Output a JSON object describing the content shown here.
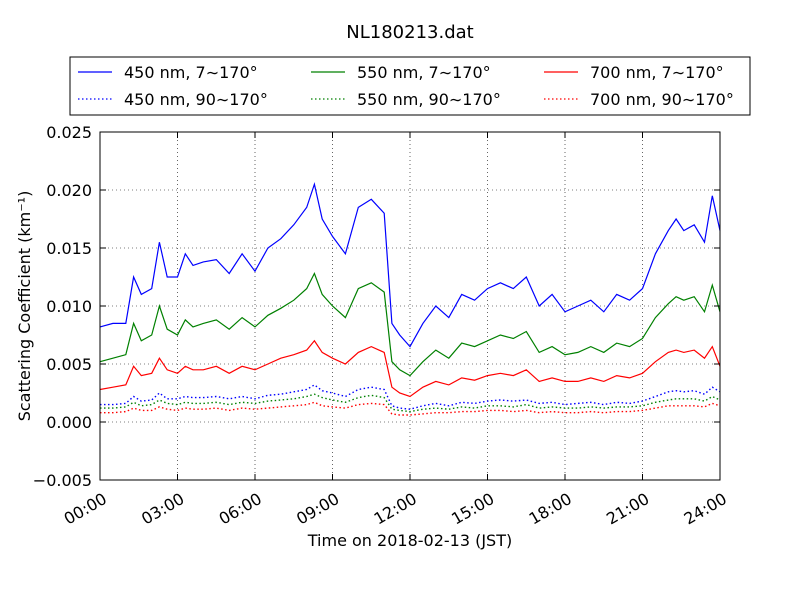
{
  "chart_data": {
    "type": "line",
    "title": "NL180213.dat",
    "xlabel": "Time on 2018-02-13 (JST)",
    "ylabel": "Scattering Coefficient (km⁻¹)",
    "xlim": [
      0,
      24
    ],
    "ylim": [
      -0.005,
      0.025
    ],
    "x_ticks": [
      "00:00",
      "03:00",
      "06:00",
      "09:00",
      "12:00",
      "15:00",
      "18:00",
      "21:00",
      "24:00"
    ],
    "y_ticks": [
      "−0.005",
      "0.000",
      "0.005",
      "0.010",
      "0.015",
      "0.020",
      "0.025"
    ],
    "grid": true,
    "legend_position": "top",
    "x": [
      0,
      0.5,
      1,
      1.3,
      1.6,
      2,
      2.3,
      2.6,
      3,
      3.3,
      3.6,
      4,
      4.5,
      5,
      5.5,
      6,
      6.5,
      7,
      7.5,
      8,
      8.3,
      8.6,
      9,
      9.5,
      10,
      10.5,
      11,
      11.3,
      11.6,
      12,
      12.5,
      13,
      13.5,
      14,
      14.5,
      15,
      15.5,
      16,
      16.5,
      17,
      17.5,
      18,
      18.5,
      19,
      19.5,
      20,
      20.5,
      21,
      21.5,
      22,
      22.3,
      22.6,
      23,
      23.4,
      23.7,
      24
    ],
    "series": [
      {
        "name": "450 nm, 7∼170°",
        "color": "#0000ff",
        "style": "solid",
        "values": [
          0.0082,
          0.0085,
          0.0085,
          0.0125,
          0.011,
          0.0115,
          0.0155,
          0.0125,
          0.0125,
          0.0145,
          0.0135,
          0.0138,
          0.014,
          0.0128,
          0.0145,
          0.013,
          0.015,
          0.0158,
          0.017,
          0.0185,
          0.0205,
          0.0175,
          0.016,
          0.0145,
          0.0185,
          0.0192,
          0.018,
          0.0085,
          0.0075,
          0.0065,
          0.0085,
          0.01,
          0.009,
          0.011,
          0.0105,
          0.0115,
          0.012,
          0.0115,
          0.0125,
          0.01,
          0.011,
          0.0095,
          0.01,
          0.0105,
          0.0095,
          0.011,
          0.0105,
          0.0115,
          0.0145,
          0.0165,
          0.0175,
          0.0165,
          0.017,
          0.0155,
          0.0195,
          0.0165
        ]
      },
      {
        "name": "550 nm, 7∼170°",
        "color": "#008000",
        "style": "solid",
        "values": [
          0.0052,
          0.0055,
          0.0058,
          0.0085,
          0.007,
          0.0075,
          0.01,
          0.008,
          0.0075,
          0.0088,
          0.0082,
          0.0085,
          0.0088,
          0.008,
          0.009,
          0.0082,
          0.0092,
          0.0098,
          0.0105,
          0.0115,
          0.0128,
          0.011,
          0.01,
          0.009,
          0.0115,
          0.012,
          0.0112,
          0.0052,
          0.0045,
          0.004,
          0.0052,
          0.0062,
          0.0055,
          0.0068,
          0.0065,
          0.007,
          0.0075,
          0.0072,
          0.0078,
          0.006,
          0.0065,
          0.0058,
          0.006,
          0.0065,
          0.006,
          0.0068,
          0.0065,
          0.0072,
          0.009,
          0.0102,
          0.0108,
          0.0105,
          0.0108,
          0.0095,
          0.0118,
          0.0095
        ]
      },
      {
        "name": "700 nm, 7∼170°",
        "color": "#ff0000",
        "style": "solid",
        "values": [
          0.0028,
          0.003,
          0.0032,
          0.0048,
          0.004,
          0.0042,
          0.0055,
          0.0045,
          0.0042,
          0.0048,
          0.0045,
          0.0045,
          0.0048,
          0.0042,
          0.0048,
          0.0045,
          0.005,
          0.0055,
          0.0058,
          0.0062,
          0.007,
          0.006,
          0.0055,
          0.005,
          0.006,
          0.0065,
          0.006,
          0.003,
          0.0025,
          0.0022,
          0.003,
          0.0035,
          0.0032,
          0.0038,
          0.0036,
          0.004,
          0.0042,
          0.004,
          0.0045,
          0.0035,
          0.0038,
          0.0035,
          0.0035,
          0.0038,
          0.0035,
          0.004,
          0.0038,
          0.0042,
          0.0052,
          0.006,
          0.0062,
          0.006,
          0.0062,
          0.0055,
          0.0065,
          0.0048
        ]
      },
      {
        "name": "450 nm, 90∼170°",
        "color": "#0000ff",
        "style": "dotted",
        "values": [
          0.0015,
          0.0015,
          0.0016,
          0.0022,
          0.0018,
          0.0019,
          0.0025,
          0.002,
          0.002,
          0.0022,
          0.0021,
          0.0021,
          0.0022,
          0.002,
          0.0022,
          0.002,
          0.0023,
          0.0024,
          0.0026,
          0.0028,
          0.0032,
          0.0027,
          0.0025,
          0.0022,
          0.0028,
          0.003,
          0.0028,
          0.0014,
          0.0012,
          0.0011,
          0.0014,
          0.0016,
          0.0014,
          0.0017,
          0.0016,
          0.0018,
          0.0019,
          0.0018,
          0.0019,
          0.0016,
          0.0017,
          0.0015,
          0.0016,
          0.0017,
          0.0015,
          0.0017,
          0.0016,
          0.0018,
          0.0022,
          0.0026,
          0.0027,
          0.0026,
          0.0027,
          0.0024,
          0.003,
          0.0026
        ]
      },
      {
        "name": "550 nm, 90∼170°",
        "color": "#008000",
        "style": "dotted",
        "values": [
          0.0012,
          0.0012,
          0.0013,
          0.0017,
          0.0014,
          0.0015,
          0.0019,
          0.0016,
          0.0015,
          0.0017,
          0.0016,
          0.0016,
          0.0017,
          0.0015,
          0.0017,
          0.0016,
          0.0018,
          0.0019,
          0.002,
          0.0022,
          0.0024,
          0.0021,
          0.0019,
          0.0017,
          0.0021,
          0.0023,
          0.0021,
          0.0011,
          0.001,
          0.0009,
          0.0011,
          0.0012,
          0.0011,
          0.0013,
          0.0012,
          0.0014,
          0.0014,
          0.0013,
          0.0015,
          0.0012,
          0.0013,
          0.0012,
          0.0012,
          0.0013,
          0.0012,
          0.0013,
          0.0013,
          0.0014,
          0.0017,
          0.0019,
          0.002,
          0.002,
          0.002,
          0.0018,
          0.0022,
          0.0019
        ]
      },
      {
        "name": "700 nm, 90∼170°",
        "color": "#ff0000",
        "style": "dotted",
        "values": [
          0.0008,
          0.0008,
          0.0009,
          0.0012,
          0.001,
          0.001,
          0.0013,
          0.0011,
          0.001,
          0.0012,
          0.0011,
          0.0011,
          0.0012,
          0.001,
          0.0012,
          0.0011,
          0.0012,
          0.0013,
          0.0014,
          0.0015,
          0.0017,
          0.0014,
          0.0013,
          0.0012,
          0.0015,
          0.0016,
          0.0015,
          0.0007,
          0.0006,
          0.0006,
          0.0007,
          0.0008,
          0.0008,
          0.0009,
          0.0009,
          0.001,
          0.001,
          0.0009,
          0.001,
          0.0008,
          0.0009,
          0.0008,
          0.0008,
          0.0009,
          0.0008,
          0.0009,
          0.0009,
          0.001,
          0.0012,
          0.0014,
          0.0014,
          0.0014,
          0.0014,
          0.0013,
          0.0016,
          0.0014
        ]
      }
    ]
  }
}
